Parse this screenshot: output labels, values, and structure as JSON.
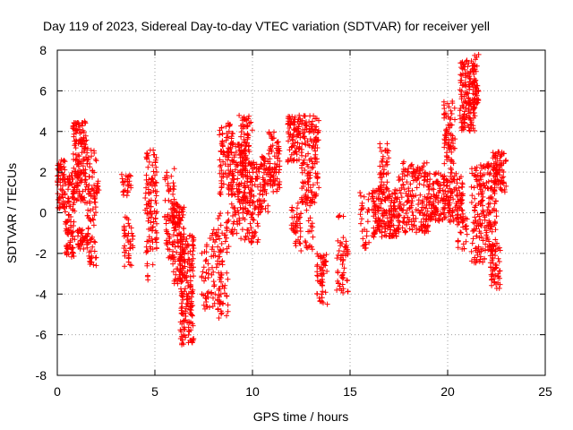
{
  "chart_data": {
    "type": "scatter",
    "title": "Day 119 of 2023, Sidereal Day-to-day VTEC variation (SDTVAR) for receiver yell",
    "xlabel": "GPS time / hours",
    "ylabel": "SDTVAR / TECUs",
    "xlim": [
      0,
      25
    ],
    "ylim": [
      -8,
      8
    ],
    "xticks": [
      0,
      5,
      10,
      15,
      20,
      25
    ],
    "yticks": [
      -8,
      -6,
      -4,
      -2,
      0,
      2,
      4,
      6,
      8
    ],
    "grid": true,
    "marker": "+",
    "color": "#ff0000",
    "series": [
      {
        "name": "SDTVAR",
        "clusters": [
          {
            "x_range": [
              0.0,
              0.4
            ],
            "y_range": [
              0.2,
              2.6
            ],
            "n": 60
          },
          {
            "x_range": [
              0.4,
              0.9
            ],
            "y_range": [
              -2.2,
              2.0
            ],
            "n": 90
          },
          {
            "x_range": [
              0.8,
              1.5
            ],
            "y_range": [
              0.5,
              4.5
            ],
            "n": 150
          },
          {
            "x_range": [
              1.0,
              1.6
            ],
            "y_range": [
              -1.8,
              -0.8
            ],
            "n": 40
          },
          {
            "x_range": [
              1.5,
              2.0
            ],
            "y_range": [
              -2.6,
              3.2
            ],
            "n": 90
          },
          {
            "x_range": [
              2.0,
              2.2
            ],
            "y_range": [
              0.8,
              1.6
            ],
            "n": 12
          },
          {
            "x_range": [
              3.3,
              3.8
            ],
            "y_range": [
              0.8,
              2.0
            ],
            "n": 25
          },
          {
            "x_range": [
              3.4,
              3.9
            ],
            "y_range": [
              -2.8,
              -0.2
            ],
            "n": 40
          },
          {
            "x_range": [
              4.5,
              5.1
            ],
            "y_range": [
              -2.0,
              3.2
            ],
            "n": 110
          },
          {
            "x_range": [
              4.6,
              4.9
            ],
            "y_range": [
              -3.5,
              -2.5
            ],
            "n": 6
          },
          {
            "x_range": [
              5.5,
              6.0
            ],
            "y_range": [
              -2.3,
              2.2
            ],
            "n": 60
          },
          {
            "x_range": [
              5.9,
              6.5
            ],
            "y_range": [
              -3.5,
              0.5
            ],
            "n": 120
          },
          {
            "x_range": [
              6.3,
              7.0
            ],
            "y_range": [
              -6.5,
              -1.0
            ],
            "n": 170
          },
          {
            "x_range": [
              7.4,
              8.5
            ],
            "y_range": [
              -4.8,
              -1.5
            ],
            "n": 70
          },
          {
            "x_range": [
              7.8,
              8.2
            ],
            "y_range": [
              -1.5,
              -0.8
            ],
            "n": 10
          },
          {
            "x_range": [
              8.2,
              8.8
            ],
            "y_range": [
              -5.2,
              0.0
            ],
            "n": 60
          },
          {
            "x_range": [
              8.3,
              9.0
            ],
            "y_range": [
              0.8,
              4.5
            ],
            "n": 90
          },
          {
            "x_range": [
              8.9,
              9.6
            ],
            "y_range": [
              -1.5,
              3.5
            ],
            "n": 90
          },
          {
            "x_range": [
              9.3,
              10.0
            ],
            "y_range": [
              0.5,
              4.8
            ],
            "n": 110
          },
          {
            "x_range": [
              9.6,
              10.3
            ],
            "y_range": [
              -1.5,
              2.5
            ],
            "n": 90
          },
          {
            "x_range": [
              10.3,
              10.8
            ],
            "y_range": [
              0.0,
              2.8
            ],
            "n": 60
          },
          {
            "x_range": [
              10.8,
              11.4
            ],
            "y_range": [
              1.0,
              4.0
            ],
            "n": 80
          },
          {
            "x_range": [
              11.8,
              12.5
            ],
            "y_range": [
              2.5,
              4.8
            ],
            "n": 80
          },
          {
            "x_range": [
              12.0,
              12.5
            ],
            "y_range": [
              -2.0,
              0.5
            ],
            "n": 40
          },
          {
            "x_range": [
              12.5,
              13.4
            ],
            "y_range": [
              0.5,
              4.8
            ],
            "n": 140
          },
          {
            "x_range": [
              12.7,
              13.1
            ],
            "y_range": [
              -2.0,
              1.0
            ],
            "n": 30
          },
          {
            "x_range": [
              13.3,
              13.9
            ],
            "y_range": [
              -4.5,
              -2.0
            ],
            "n": 55
          },
          {
            "x_range": [
              14.3,
              14.9
            ],
            "y_range": [
              -4.0,
              -1.2
            ],
            "n": 50
          },
          {
            "x_range": [
              14.4,
              14.8
            ],
            "y_range": [
              -0.3,
              0.0
            ],
            "n": 4
          },
          {
            "x_range": [
              15.5,
              16.0
            ],
            "y_range": [
              -1.8,
              1.0
            ],
            "n": 30
          },
          {
            "x_range": [
              16.1,
              17.5
            ],
            "y_range": [
              -1.2,
              1.2
            ],
            "n": 180
          },
          {
            "x_range": [
              16.5,
              17.0
            ],
            "y_range": [
              1.0,
              3.4
            ],
            "n": 40
          },
          {
            "x_range": [
              17.5,
              19.0
            ],
            "y_range": [
              -1.0,
              2.5
            ],
            "n": 180
          },
          {
            "x_range": [
              19.0,
              20.8
            ],
            "y_range": [
              -0.5,
              2.0
            ],
            "n": 200
          },
          {
            "x_range": [
              19.8,
              20.4
            ],
            "y_range": [
              2.0,
              5.5
            ],
            "n": 70
          },
          {
            "x_range": [
              20.6,
              21.4
            ],
            "y_range": [
              4.0,
              7.5
            ],
            "n": 140
          },
          {
            "x_range": [
              20.5,
              21.0
            ],
            "y_range": [
              -1.8,
              0.0
            ],
            "n": 30
          },
          {
            "x_range": [
              21.3,
              21.6
            ],
            "y_range": [
              5.0,
              7.8
            ],
            "n": 40
          },
          {
            "x_range": [
              21.2,
              22.5
            ],
            "y_range": [
              -2.5,
              2.5
            ],
            "n": 200
          },
          {
            "x_range": [
              22.2,
              22.7
            ],
            "y_range": [
              -3.8,
              -1.5
            ],
            "n": 50
          },
          {
            "x_range": [
              22.3,
              23.0
            ],
            "y_range": [
              1.0,
              3.0
            ],
            "n": 80
          }
        ]
      }
    ]
  }
}
